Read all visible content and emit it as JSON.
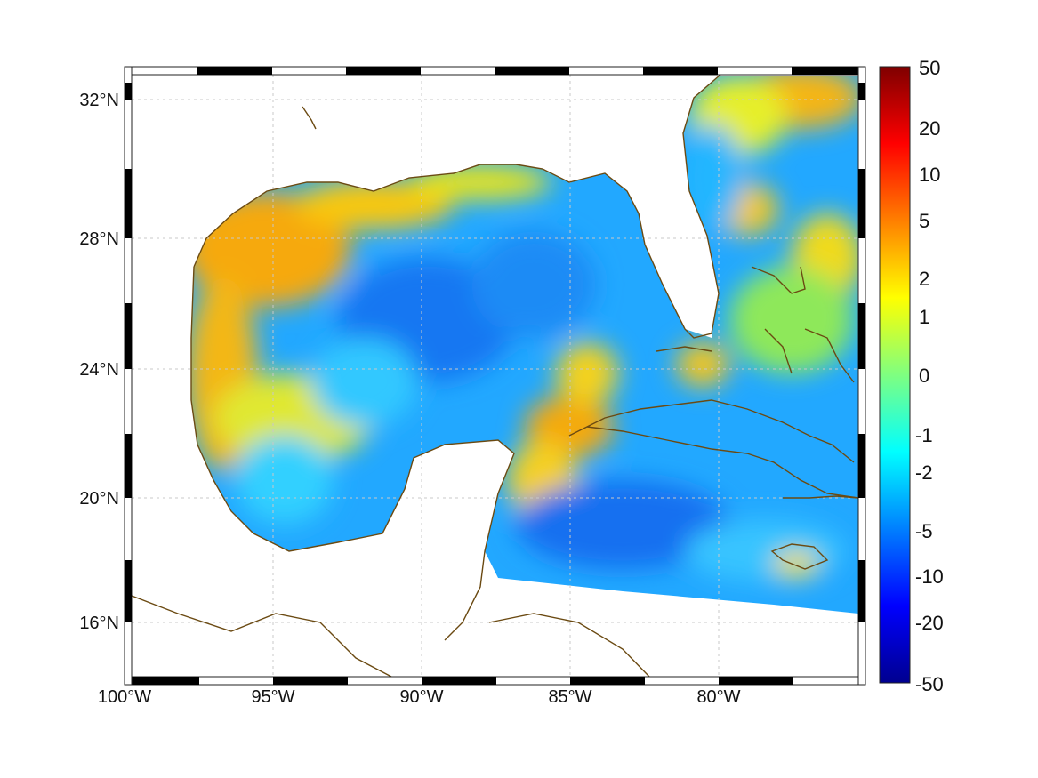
{
  "map": {
    "lon_labels": [
      "100°W",
      "95°W",
      "90°W",
      "85°W",
      "80°W"
    ],
    "lat_labels": [
      "32°N",
      "28°N",
      "24°N",
      "20°N",
      "16°N"
    ],
    "coastline_color": "#6b4a12",
    "grid": true
  },
  "colorbar": {
    "labels": [
      "50",
      "20",
      "10",
      "5",
      "2",
      "1",
      "0",
      "-1",
      "-2",
      "-5",
      "-10",
      "-20",
      "-50"
    ],
    "colormap": "jet"
  },
  "chart_data": {
    "type": "heatmap",
    "x_range_lon": [
      -100,
      -75.2
    ],
    "y_range_lat": [
      14.3,
      32.9
    ],
    "colorbar_ticks": [
      50,
      20,
      10,
      5,
      2,
      1,
      0,
      -1,
      -2,
      -5,
      -10,
      -20,
      -50
    ],
    "colorbar_range": [
      -50,
      50
    ]
  }
}
